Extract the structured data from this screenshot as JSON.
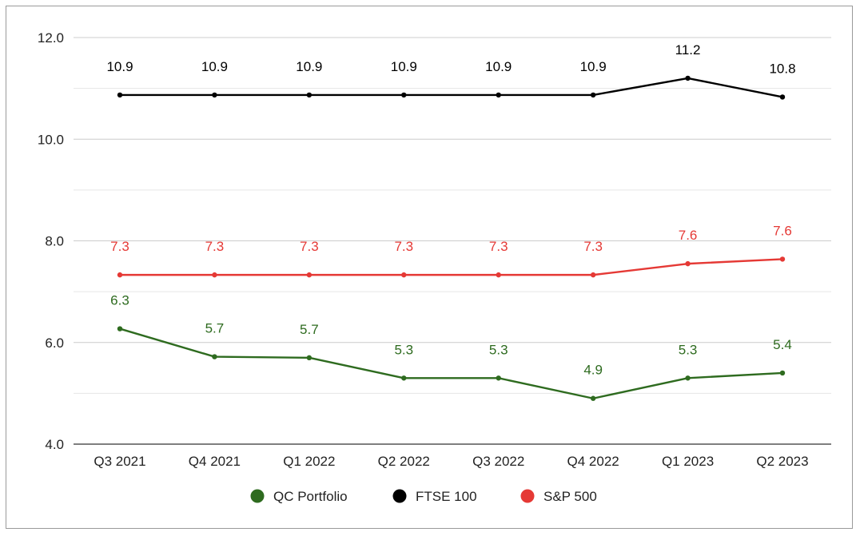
{
  "chart_data": {
    "type": "line",
    "title": "",
    "xlabel": "",
    "ylabel": "",
    "categories": [
      "Q3 2021",
      "Q4 2021",
      "Q1 2022",
      "Q2 2022",
      "Q3 2022",
      "Q4 2022",
      "Q1 2023",
      "Q2 2023"
    ],
    "ylim": [
      4.0,
      12.0
    ],
    "yticks": [
      4.0,
      6.0,
      8.0,
      10.0,
      12.0
    ],
    "ytick_labels": [
      "4.0",
      "6.0",
      "8.0",
      "10.0",
      "12.0"
    ],
    "minor_gridlines": true,
    "grid": true,
    "legend_position": "bottom",
    "series": [
      {
        "name": "QC Portfolio",
        "color": "#2e6b1f",
        "values": [
          6.27,
          5.72,
          5.7,
          5.3,
          5.3,
          4.9,
          5.3,
          5.4
        ],
        "labels": [
          "6.3",
          "5.7",
          "5.7",
          "5.3",
          "5.3",
          "4.9",
          "5.3",
          "5.4"
        ]
      },
      {
        "name": "FTSE 100",
        "color": "#000000",
        "values": [
          10.87,
          10.87,
          10.87,
          10.87,
          10.87,
          10.87,
          11.2,
          10.83
        ],
        "labels": [
          "10.9",
          "10.9",
          "10.9",
          "10.9",
          "10.9",
          "10.9",
          "11.2",
          "10.8"
        ]
      },
      {
        "name": "S&P 500",
        "color": "#e53935",
        "values": [
          7.33,
          7.33,
          7.33,
          7.33,
          7.33,
          7.33,
          7.55,
          7.64
        ],
        "labels": [
          "7.3",
          "7.3",
          "7.3",
          "7.3",
          "7.3",
          "7.3",
          "7.6",
          "7.6"
        ]
      }
    ]
  }
}
